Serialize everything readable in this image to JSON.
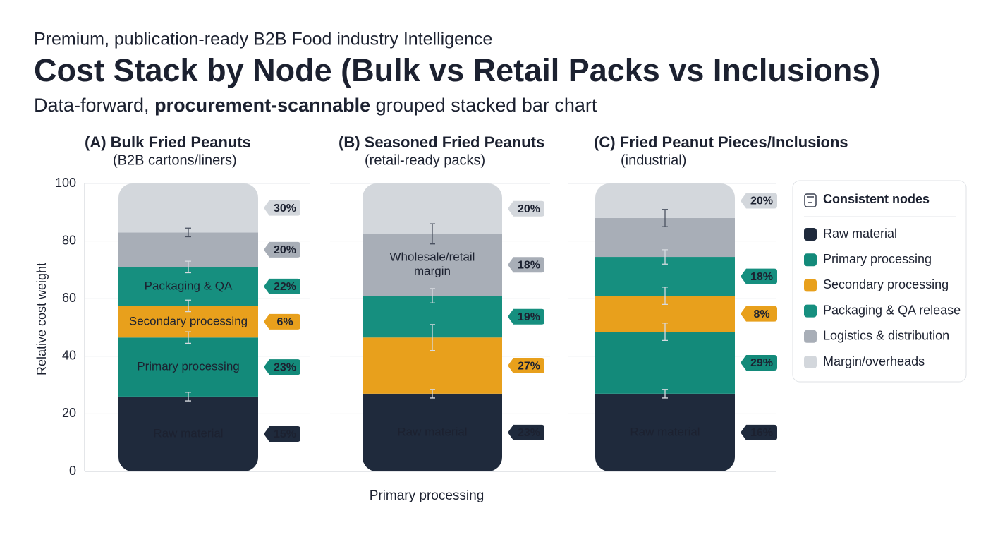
{
  "header": {
    "supertitle": "Premium, publication-ready B2B Food industry Intelligence",
    "title": "Cost Stack by Node (Bulk vs Retail Packs vs Inclusions)",
    "subtitle": [
      "Data-forward, ",
      "procurement-scannable",
      " grouped stacked bar chart"
    ]
  },
  "chart_data": {
    "type": "stacked_bar",
    "y_label": "Relative cost weight",
    "x_label": "Primary processing",
    "ylim": [
      0,
      100
    ],
    "yticks": [
      0,
      20,
      40,
      60,
      80,
      100
    ],
    "grid": true,
    "categories": [
      "(A) Bulk Fried Peanuts",
      "(B) Seasoned Fried Peanuts",
      "(C) Fried Peanut Pieces/Inclusions"
    ],
    "category_subtitles": [
      "(B2B cartons/liners)",
      "(retail-ready packs)",
      "(industrial)"
    ],
    "legend_title": "Consistent nodes",
    "legend_position": "right",
    "series": [
      {
        "name": "Raw material",
        "color": "#1f2a3c",
        "values": [
          26,
          27,
          27
        ],
        "errors": [
          1.5,
          1.5,
          1.5
        ],
        "tags": [
          "15%",
          "23%",
          "16%"
        ],
        "segment_labels": [
          "Raw material",
          "Raw material",
          "Raw material"
        ]
      },
      {
        "name": "Primary processing",
        "color": "#138a7a",
        "values": [
          20.5,
          0,
          21.5
        ],
        "errors": [
          2,
          null,
          3
        ],
        "tags": [
          "23%",
          null,
          "29%"
        ],
        "segment_labels": [
          "Primary processing",
          null,
          null
        ]
      },
      {
        "name": "Secondary processing",
        "color": "#e8a01c",
        "values": [
          11,
          19.5,
          12.5
        ],
        "errors": [
          2,
          4.5,
          3
        ],
        "tags": [
          "6%",
          "27%",
          "8%"
        ],
        "segment_labels": [
          "Secondary processing",
          null,
          null
        ]
      },
      {
        "name": "Packaging & QA release",
        "color": "#168f7f",
        "values": [
          13.5,
          14.5,
          13.5
        ],
        "errors": [
          2,
          2.5,
          2.5
        ],
        "tags": [
          "22%",
          "19%",
          "18%"
        ],
        "segment_labels": [
          "Packaging & QA",
          null,
          null
        ]
      },
      {
        "name": "Logistics & distribution",
        "color": "#a8aeb7",
        "values": [
          12,
          21.5,
          13.5
        ],
        "errors": [
          1.5,
          3.5,
          3
        ],
        "tags": [
          "20%",
          "18%",
          null
        ],
        "segment_labels": [
          null,
          "Wholesale/retail margin",
          null
        ]
      },
      {
        "name": "Margin/overheads",
        "color": "#d3d7dc",
        "values": [
          17,
          17.5,
          12
        ],
        "errors": [
          null,
          null,
          null
        ],
        "tags": [
          "30%",
          "20%",
          "20%"
        ],
        "segment_labels": [
          null,
          null,
          null
        ]
      }
    ]
  }
}
